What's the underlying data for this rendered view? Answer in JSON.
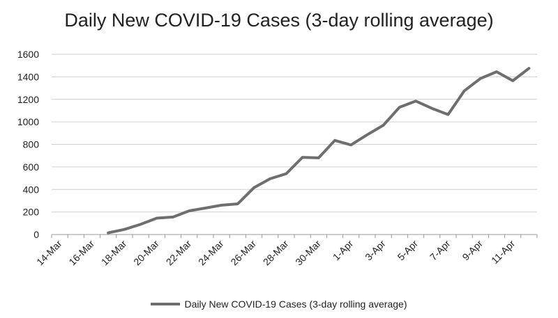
{
  "chart_data": {
    "type": "line",
    "title": "Daily New COVID-19 Cases (3-day rolling average)",
    "xlabel": "",
    "ylabel": "",
    "ylim": [
      0,
      1600
    ],
    "yticks": [
      0,
      200,
      400,
      600,
      800,
      1000,
      1200,
      1400,
      1600
    ],
    "grid": true,
    "legend_position": "bottom",
    "x_tick_labels": [
      "14-Mar",
      "16-Mar",
      "18-Mar",
      "20-Mar",
      "22-Mar",
      "24-Mar",
      "26-Mar",
      "28-Mar",
      "30-Mar",
      "1-Apr",
      "3-Apr",
      "5-Apr",
      "7-Apr",
      "9-Apr",
      "11-Apr"
    ],
    "categories": [
      "14-Mar",
      "15-Mar",
      "16-Mar",
      "17-Mar",
      "18-Mar",
      "19-Mar",
      "20-Mar",
      "21-Mar",
      "22-Mar",
      "23-Mar",
      "24-Mar",
      "25-Mar",
      "26-Mar",
      "27-Mar",
      "28-Mar",
      "29-Mar",
      "30-Mar",
      "31-Mar",
      "1-Apr",
      "2-Apr",
      "3-Apr",
      "4-Apr",
      "5-Apr",
      "6-Apr",
      "7-Apr",
      "8-Apr",
      "9-Apr",
      "10-Apr",
      "11-Apr",
      "12-Apr"
    ],
    "series": [
      {
        "name": "Daily New COVID-19 Cases (3-day rolling average)",
        "color": "#6e6e6e",
        "values": [
          null,
          null,
          null,
          15,
          45,
          90,
          145,
          155,
          210,
          235,
          260,
          272,
          415,
          495,
          540,
          685,
          680,
          835,
          795,
          885,
          970,
          1130,
          1185,
          1120,
          1065,
          1275,
          1385,
          1445,
          1365,
          1475
        ]
      }
    ]
  }
}
